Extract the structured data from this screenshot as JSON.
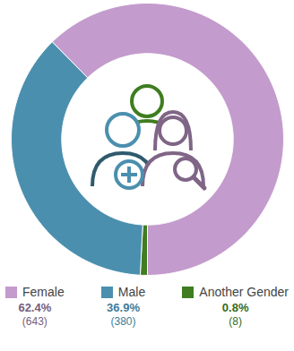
{
  "chart_data": {
    "type": "donut",
    "categories": [
      "Female",
      "Male",
      "Another Gender"
    ],
    "values": [
      62.4,
      36.9,
      0.8
    ],
    "value_labels": [
      "62.4%",
      "36.9%",
      "0.8%"
    ],
    "count_labels": [
      "(643)",
      "(380)",
      "(8)"
    ],
    "colors": [
      "#c39bcd",
      "#4b8fae",
      "#3f7d20"
    ],
    "legend": "bottom"
  }
}
